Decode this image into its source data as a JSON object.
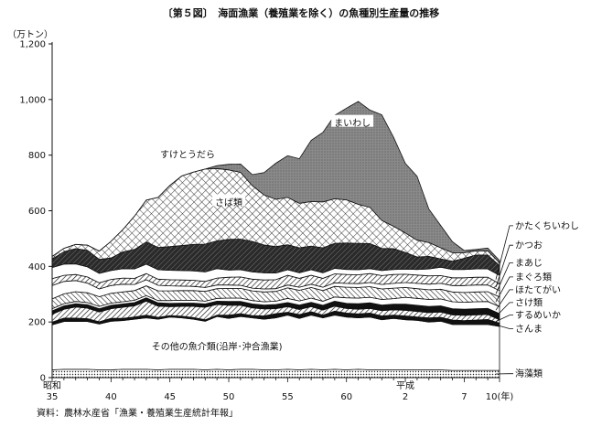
{
  "chart_data": {
    "type": "area",
    "title": "〔第５図〕　海面漁業（養殖業を除く）の魚種別生産量の推移",
    "ylabel": "（万トン）",
    "ylim": [
      0,
      1200
    ],
    "yticks": [
      {
        "value": 0,
        "label": "0"
      },
      {
        "value": 200,
        "label": "200"
      },
      {
        "value": 400,
        "label": "400"
      },
      {
        "value": 600,
        "label": "600"
      },
      {
        "value": 800,
        "label": "800"
      },
      {
        "value": 1000,
        "label": "1,000"
      },
      {
        "value": 1200,
        "label": "1,200"
      }
    ],
    "x_ticks": [
      {
        "year": 1960,
        "label": "35",
        "era": "昭和"
      },
      {
        "year": 1965,
        "label": "40"
      },
      {
        "year": 1970,
        "label": "45"
      },
      {
        "year": 1975,
        "label": "50"
      },
      {
        "year": 1980,
        "label": "55"
      },
      {
        "year": 1985,
        "label": "60"
      },
      {
        "year": 1990,
        "label": "2",
        "era": "平成"
      },
      {
        "year": 1995,
        "label": "7"
      },
      {
        "year": 1998,
        "label": "10(年)"
      }
    ],
    "x": [
      1960,
      1961,
      1962,
      1963,
      1964,
      1965,
      1966,
      1967,
      1968,
      1969,
      1970,
      1971,
      1972,
      1973,
      1974,
      1975,
      1976,
      1977,
      1978,
      1979,
      1980,
      1981,
      1982,
      1983,
      1984,
      1985,
      1986,
      1987,
      1988,
      1989,
      1990,
      1991,
      1992,
      1993,
      1994,
      1995,
      1996,
      1997,
      1998
    ],
    "series": [
      {
        "name": "海藻類",
        "pattern": "dots",
        "values": [
          28,
          30,
          30,
          30,
          28,
          28,
          30,
          30,
          30,
          28,
          30,
          30,
          30,
          28,
          30,
          28,
          30,
          30,
          28,
          28,
          30,
          28,
          30,
          28,
          30,
          28,
          30,
          28,
          28,
          28,
          28,
          28,
          28,
          28,
          26,
          26,
          26,
          26,
          26
        ],
        "label_pos": {
          "year": 1999.2,
          "value": 14
        }
      },
      {
        "name": "その他の魚介類(沿岸･沖合漁業)",
        "pattern": "white",
        "values": [
          162,
          172,
          172,
          172,
          165,
          175,
          175,
          180,
          185,
          182,
          188,
          185,
          180,
          175,
          190,
          185,
          190,
          185,
          182,
          187,
          195,
          185,
          195,
          187,
          195,
          190,
          185,
          190,
          180,
          185,
          180,
          178,
          172,
          175,
          165,
          165,
          165,
          165,
          158
        ],
        "label_pos": {
          "year": 1974,
          "value": 112
        }
      },
      {
        "name": "さんま",
        "pattern": "black",
        "values": [
          10,
          12,
          12,
          10,
          8,
          10,
          8,
          8,
          10,
          7,
          5,
          6,
          6,
          5,
          5,
          12,
          10,
          8,
          12,
          15,
          10,
          14,
          12,
          10,
          14,
          14,
          14,
          14,
          14,
          12,
          14,
          12,
          15,
          14,
          16,
          14,
          16,
          18,
          12
        ],
        "label_pos": {
          "year": 1999.2,
          "value": 176
        }
      },
      {
        "name": "するめいか",
        "pattern": "hatch-ne",
        "values": [
          28,
          32,
          40,
          38,
          35,
          35,
          40,
          40,
          50,
          40,
          32,
          35,
          40,
          45,
          38,
          35,
          30,
          28,
          25,
          18,
          20,
          18,
          18,
          18,
          18,
          17,
          17,
          17,
          19,
          19,
          20,
          20,
          19,
          19,
          19,
          19,
          19,
          18,
          12
        ],
        "label_pos": {
          "year": 1999.2,
          "value": 225
        }
      },
      {
        "name": "さけ類",
        "pattern": "black",
        "values": [
          12,
          12,
          12,
          12,
          12,
          12,
          12,
          12,
          12,
          12,
          12,
          12,
          12,
          12,
          12,
          14,
          14,
          14,
          14,
          15,
          15,
          16,
          16,
          17,
          18,
          18,
          20,
          20,
          20,
          20,
          22,
          22,
          22,
          22,
          22,
          22,
          22,
          22,
          22
        ],
        "label_pos": {
          "year": 1999.2,
          "value": 270
        }
      },
      {
        "name": "ほたてがい",
        "pattern": "white",
        "values": [
          8,
          8,
          8,
          8,
          8,
          8,
          8,
          8,
          8,
          8,
          10,
          10,
          10,
          10,
          10,
          12,
          12,
          12,
          12,
          12,
          15,
          15,
          15,
          15,
          15,
          20,
          20,
          20,
          20,
          20,
          25,
          25,
          25,
          25,
          25,
          25,
          25,
          25,
          25
        ],
        "label_pos": {
          "year": 1999.2,
          "value": 316
        }
      },
      {
        "name": "まぐろ類",
        "pattern": "hatch-nw",
        "values": [
          35,
          35,
          35,
          35,
          35,
          35,
          35,
          35,
          35,
          35,
          35,
          35,
          35,
          35,
          35,
          35,
          35,
          35,
          35,
          35,
          38,
          38,
          38,
          38,
          38,
          38,
          38,
          38,
          38,
          38,
          35,
          35,
          35,
          35,
          35,
          35,
          35,
          35,
          35
        ],
        "label_pos": {
          "year": 1999.2,
          "value": 362
        }
      },
      {
        "name": "まあじ",
        "pattern": "white",
        "values": [
          48,
          45,
          40,
          35,
          28,
          28,
          28,
          22,
          22,
          20,
          18,
          16,
          15,
          14,
          13,
          12,
          11,
          10,
          11,
          10,
          10,
          11,
          12,
          12,
          13,
          14,
          14,
          15,
          16,
          17,
          18,
          19,
          20,
          21,
          23,
          25,
          25,
          24,
          23
        ],
        "label_pos": {
          "year": 1999.2,
          "value": 413
        }
      },
      {
        "name": "かつお",
        "pattern": "hatch-ne",
        "values": [
          25,
          22,
          22,
          22,
          22,
          22,
          22,
          22,
          22,
          22,
          22,
          22,
          22,
          22,
          25,
          28,
          30,
          32,
          32,
          32,
          35,
          32,
          32,
          32,
          32,
          32,
          32,
          32,
          32,
          32,
          30,
          30,
          30,
          28,
          28,
          28,
          28,
          28,
          25
        ],
        "label_pos": {
          "year": 1999.2,
          "value": 476
        }
      },
      {
        "name": "かたくちいわし",
        "pattern": "white",
        "values": [
          40,
          40,
          38,
          36,
          34,
          32,
          34,
          34,
          34,
          34,
          34,
          34,
          34,
          34,
          34,
          26,
          26,
          26,
          26,
          24,
          20,
          20,
          20,
          20,
          20,
          18,
          18,
          18,
          18,
          18,
          18,
          20,
          25,
          30,
          30,
          30,
          30,
          30,
          30
        ],
        "label_pos": {
          "year": 1999.2,
          "value": 546
        }
      },
      {
        "name": "さば類",
        "pattern": "dark-hatch",
        "values": [
          30,
          45,
          55,
          60,
          50,
          45,
          60,
          70,
          80,
          80,
          85,
          90,
          95,
          100,
          100,
          110,
          110,
          110,
          100,
          95,
          90,
          90,
          85,
          90,
          90,
          95,
          95,
          90,
          80,
          75,
          60,
          45,
          45,
          30,
          30,
          40,
          50,
          50,
          35
        ],
        "label_pos": {
          "year": 1975,
          "value": 630
        }
      },
      {
        "name": "すけとうだら",
        "pattern": "cross",
        "values": [
          10,
          12,
          15,
          18,
          30,
          60,
          80,
          120,
          150,
          180,
          220,
          250,
          260,
          270,
          260,
          250,
          240,
          200,
          180,
          170,
          170,
          160,
          160,
          165,
          160,
          155,
          140,
          130,
          100,
          80,
          70,
          60,
          50,
          40,
          30,
          20,
          15,
          15,
          10
        ],
        "label_pos": {
          "year": 1971.5,
          "value": 802
        }
      },
      {
        "name": "まいわし",
        "pattern": "gray",
        "values": [
          0,
          0,
          0,
          0,
          0,
          0,
          0,
          0,
          0,
          0,
          0,
          0,
          0,
          0,
          10,
          20,
          30,
          40,
          80,
          130,
          150,
          160,
          220,
          250,
          300,
          330,
          370,
          350,
          380,
          320,
          250,
          230,
          120,
          80,
          40,
          8,
          5,
          10,
          8
        ],
        "label_pos": {
          "year": 1985.5,
          "value": 915
        }
      }
    ],
    "source": "資料：農林水産省「漁業・養殖業生産統計年報」"
  }
}
